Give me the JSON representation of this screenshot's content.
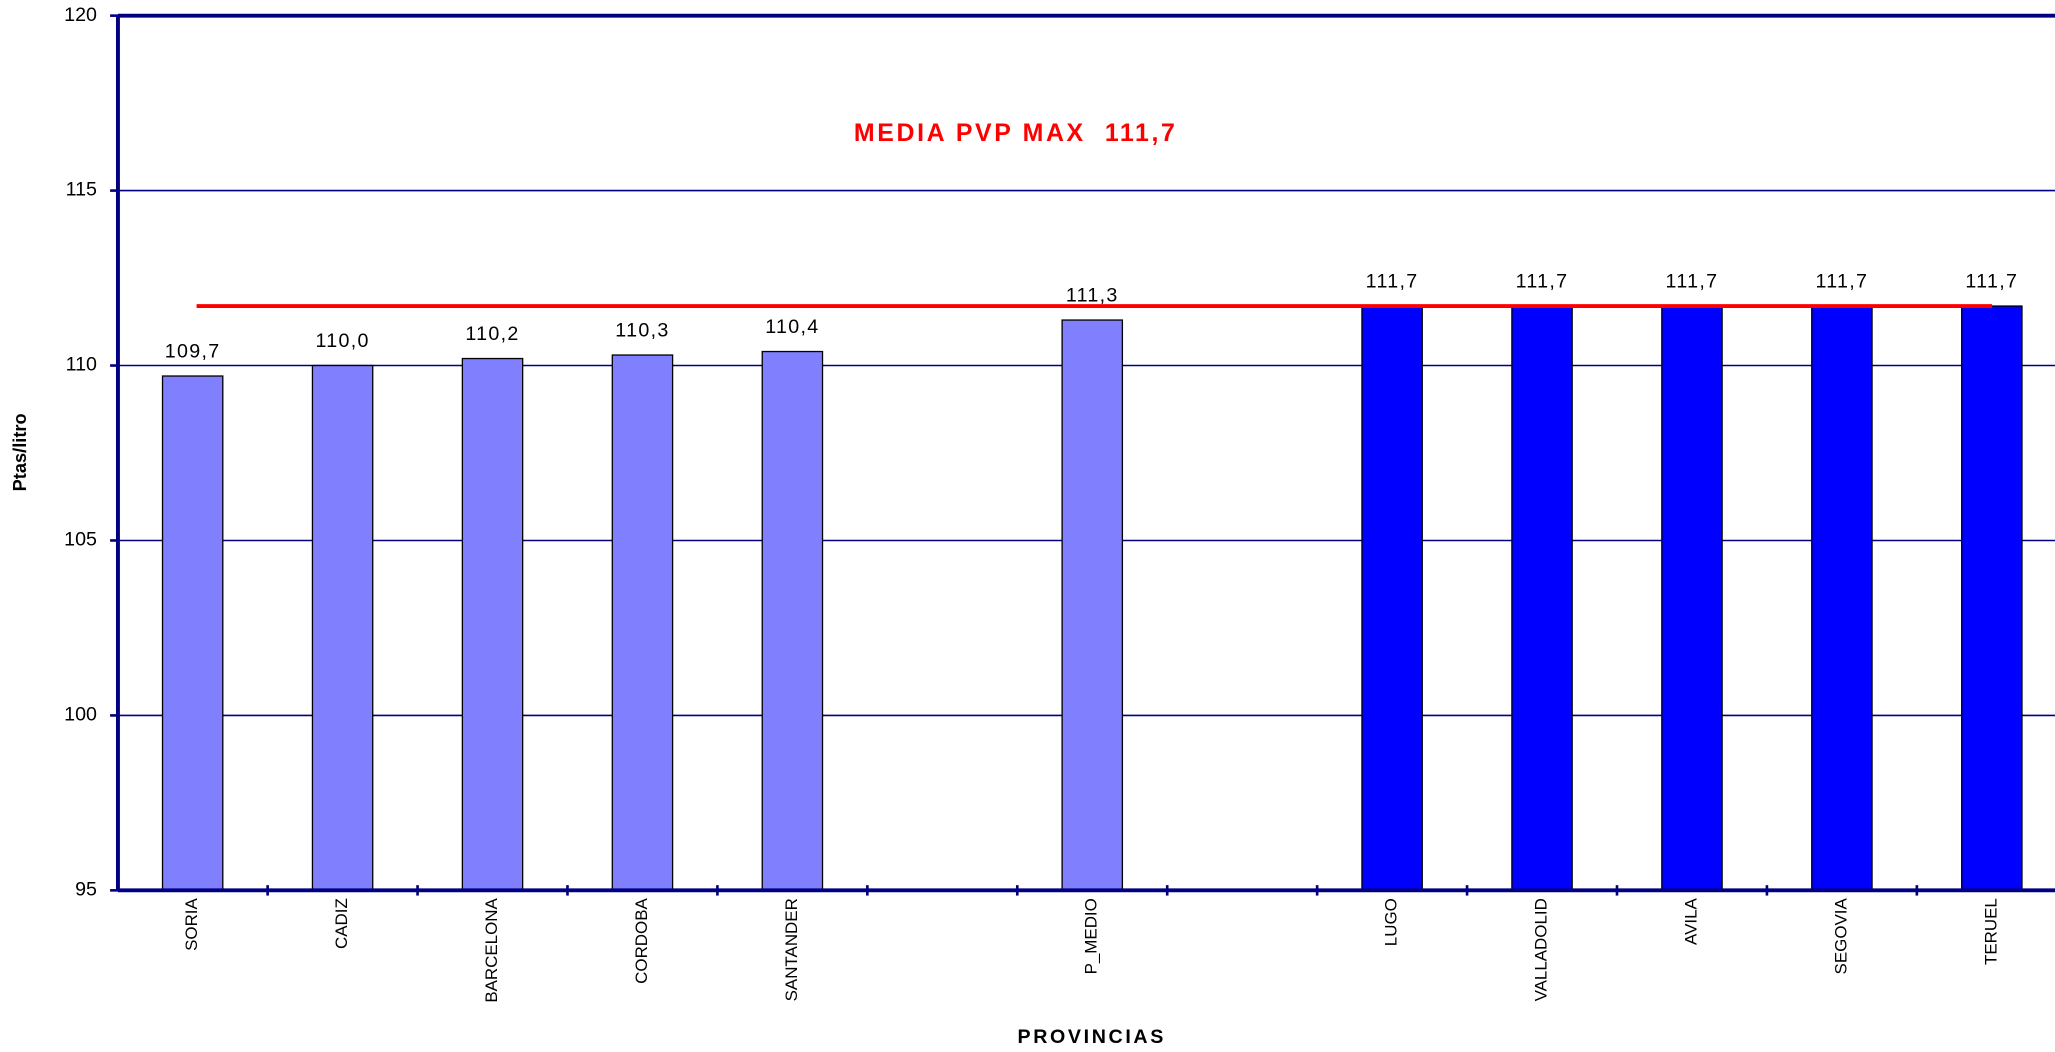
{
  "chart_data": {
    "type": "bar",
    "categories": [
      "SORIA",
      "CADIZ",
      "BARCELONA",
      "CORDOBA",
      "SANTANDER",
      null,
      "P_MEDIO",
      null,
      "LUGO",
      "VALLADOLID",
      "AVILA",
      "SEGOVIA",
      "TERUEL"
    ],
    "values": [
      109.7,
      110.0,
      110.2,
      110.3,
      110.4,
      null,
      111.3,
      null,
      111.7,
      111.7,
      111.7,
      111.7,
      111.7
    ],
    "value_labels": [
      "109,7",
      "110,0",
      "110,2",
      "110,3",
      "110,4",
      null,
      "111,3",
      null,
      "111,7",
      "111,7",
      "111,7",
      "111,7",
      "111,7"
    ],
    "colors": [
      "#8080ff",
      "#8080ff",
      "#8080ff",
      "#8080ff",
      "#8080ff",
      null,
      "#8080ff",
      null,
      "#0000ff",
      "#0000ff",
      "#0000ff",
      "#0000ff",
      "#0000ff"
    ],
    "y_label": "Ptas/litro",
    "x_label": "PROVINCIAS",
    "ylim": [
      95,
      120
    ],
    "yticks": [
      95,
      100,
      105,
      110,
      115,
      120
    ],
    "grid": true,
    "reference_line": {
      "value": 111.7,
      "label": "MEDIA PVP MAX  111,7",
      "color": "#ff0000"
    }
  }
}
